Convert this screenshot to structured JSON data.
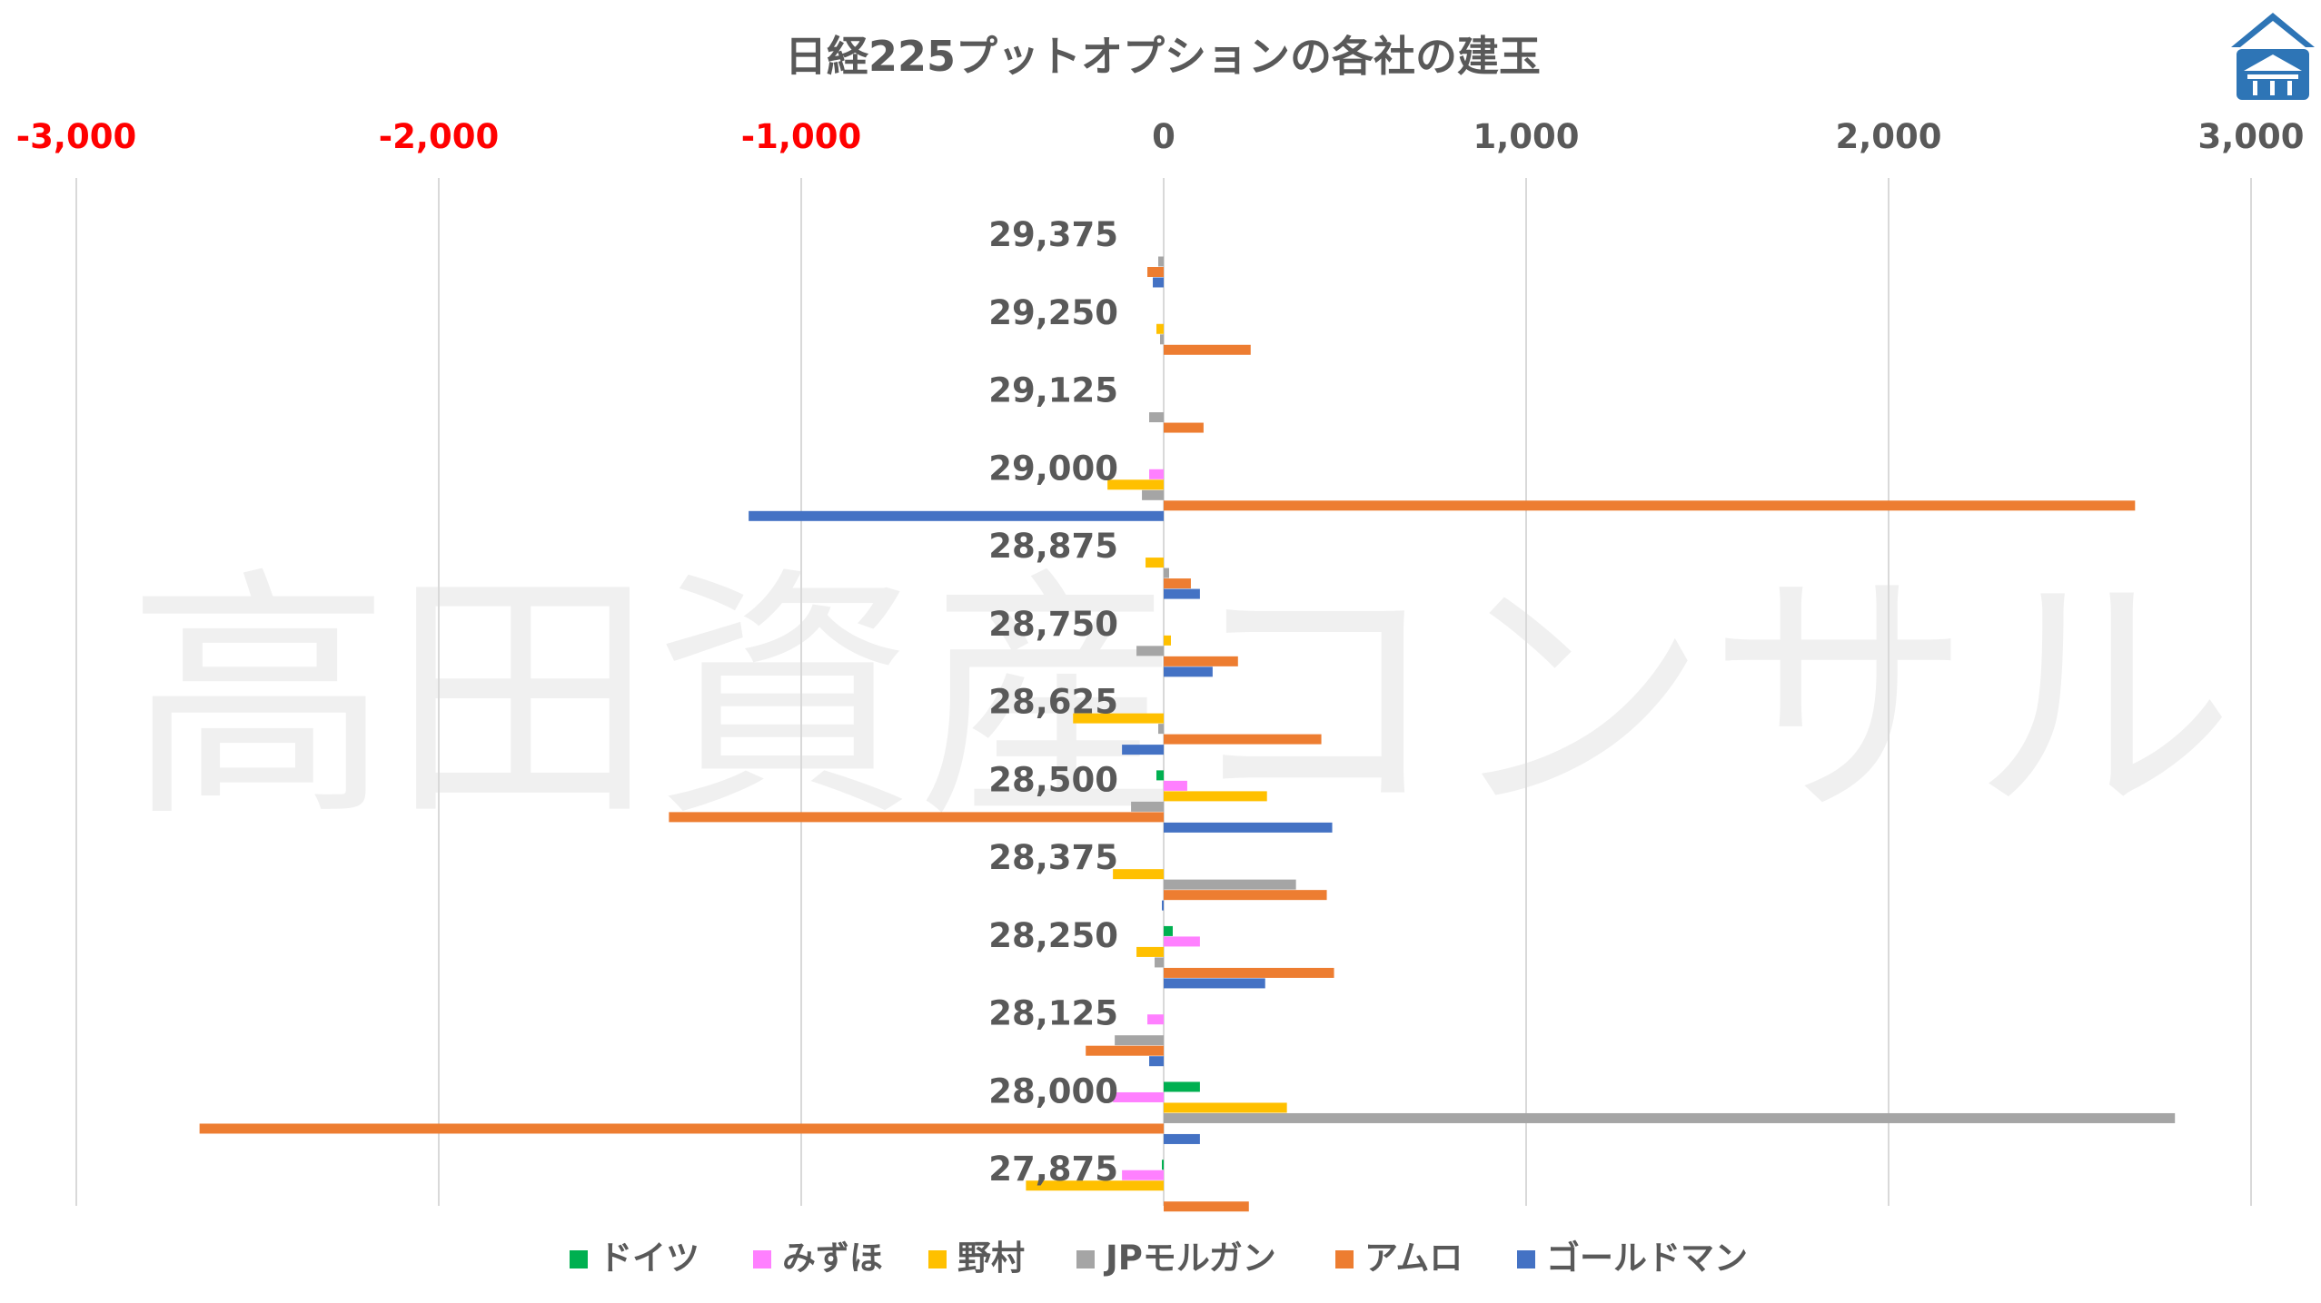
{
  "chart_data": {
    "type": "bar",
    "orientation": "horizontal",
    "title": "日経225プットオプションの各社の建玉",
    "watermark": "高田資産コンサル",
    "logo": "shrine-roof-logo",
    "x_axis": {
      "position": "top",
      "range": [
        -3000,
        3000
      ],
      "ticks": [
        -3000,
        -2000,
        -1000,
        0,
        1000,
        2000,
        3000
      ],
      "tick_labels": [
        "-3,000",
        "-2,000",
        "-1,000",
        "0",
        "1,000",
        "2,000",
        "3,000"
      ],
      "negative_label_color": "#ff0000",
      "positive_label_color": "#595959",
      "grid": true
    },
    "categories": [
      "29,375",
      "29,250",
      "29,125",
      "29,000",
      "28,875",
      "28,750",
      "28,625",
      "28,500",
      "28,375",
      "28,250",
      "28,125",
      "28,000",
      "27,875"
    ],
    "series": [
      {
        "name": "ドイツ",
        "color": "#00b050",
        "values": [
          0,
          0,
          0,
          0,
          0,
          0,
          0,
          -20,
          0,
          25,
          0,
          100,
          -5
        ]
      },
      {
        "name": "みずほ",
        "color": "#ff80ff",
        "values": [
          0,
          0,
          0,
          -40,
          0,
          0,
          0,
          65,
          0,
          100,
          -45,
          -140,
          -115
        ]
      },
      {
        "name": "野村",
        "color": "#ffc000",
        "values": [
          0,
          -20,
          0,
          -155,
          -50,
          20,
          -250,
          285,
          -140,
          -75,
          0,
          340,
          -380
        ]
      },
      {
        "name": "JPモルガン",
        "color": "#a5a5a5",
        "values": [
          -15,
          -10,
          -40,
          -60,
          15,
          -75,
          -15,
          -90,
          365,
          -25,
          -135,
          2790,
          0
        ]
      },
      {
        "name": "アムロ",
        "color": "#ed7d31",
        "values": [
          -45,
          240,
          110,
          2680,
          75,
          205,
          435,
          -1365,
          450,
          470,
          -215,
          -2660,
          235
        ]
      },
      {
        "name": "ゴールドマン",
        "color": "#4472c4",
        "values": [
          -30,
          0,
          0,
          -1145,
          100,
          135,
          -115,
          465,
          -5,
          280,
          -40,
          100,
          0
        ]
      }
    ],
    "legend_position": "bottom"
  }
}
